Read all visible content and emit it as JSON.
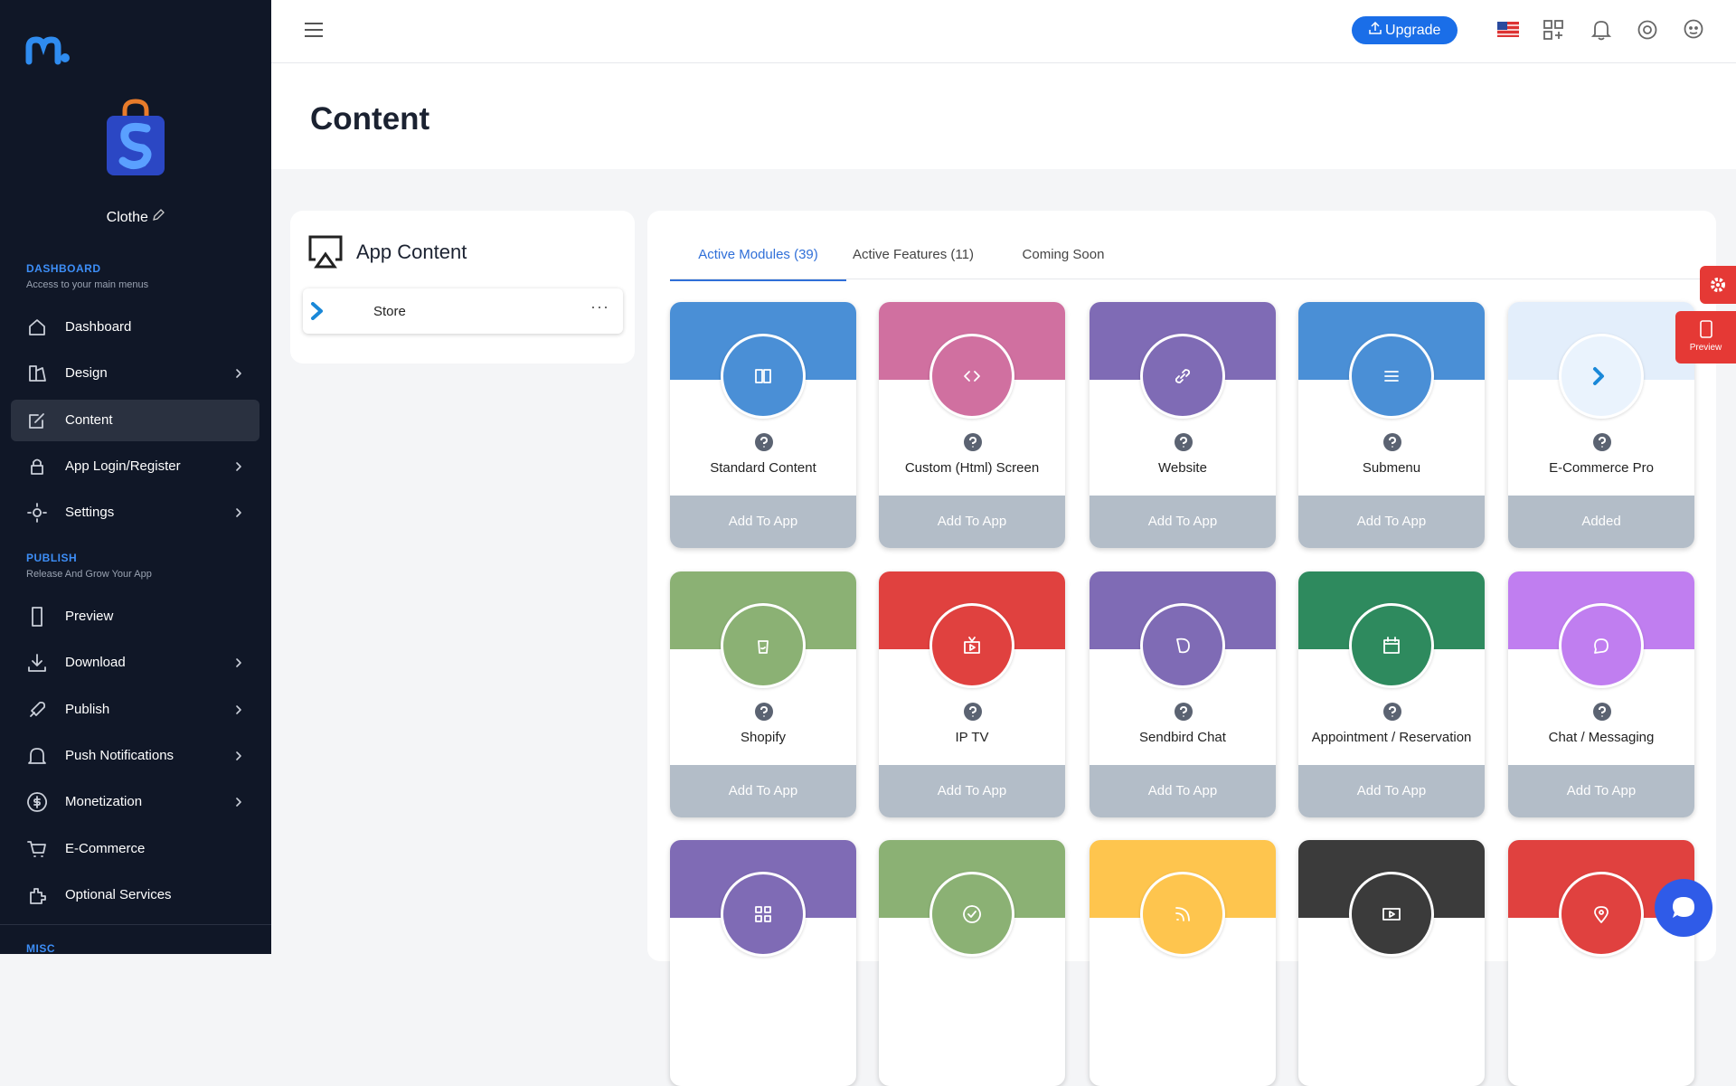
{
  "sidebar": {
    "store_name": "Clothe",
    "sections": [
      {
        "title": "DASHBOARD",
        "subtitle": "Access to your main menus",
        "items": [
          {
            "label": "Dashboard"
          },
          {
            "label": "Design",
            "submenu": true
          },
          {
            "label": "Content",
            "active": true
          },
          {
            "label": "App Login/Register",
            "submenu": true
          },
          {
            "label": "Settings",
            "submenu": true
          }
        ]
      },
      {
        "title": "PUBLISH",
        "subtitle": "Release And Grow Your App",
        "items": [
          {
            "label": "Preview"
          },
          {
            "label": "Download",
            "submenu": true
          },
          {
            "label": "Publish",
            "submenu": true
          },
          {
            "label": "Push Notifications",
            "submenu": true
          },
          {
            "label": "Monetization",
            "submenu": true
          },
          {
            "label": "E-Commerce"
          },
          {
            "label": "Optional Services"
          }
        ]
      },
      {
        "title": "MISC"
      }
    ]
  },
  "topbar": {
    "upgrade": "Upgrade"
  },
  "header": {
    "title": "Content"
  },
  "app_content": {
    "title": "App Content",
    "items": [
      "Store"
    ]
  },
  "tabs": [
    {
      "label": "Active Modules (39)",
      "active": true
    },
    {
      "label": "Active Features (11)"
    },
    {
      "label": "Coming Soon"
    }
  ],
  "modules": [
    {
      "name": "Standard Content",
      "color": "#4a8fd6",
      "button": "Add To App"
    },
    {
      "name": "Custom (Html) Screen",
      "color": "#d070a0",
      "button": "Add To App"
    },
    {
      "name": "Website",
      "color": "#7f6bb5",
      "button": "Add To App"
    },
    {
      "name": "Submenu",
      "color": "#4a8fd6",
      "button": "Add To App"
    },
    {
      "name": "E-Commerce Pro",
      "color": "#e3eefb",
      "button": "Added"
    },
    {
      "name": "Shopify",
      "color": "#8bb174",
      "button": "Add To App"
    },
    {
      "name": "IP TV",
      "color": "#e0413f",
      "button": "Add To App"
    },
    {
      "name": "Sendbird Chat",
      "color": "#7f6bb5",
      "button": "Add To App"
    },
    {
      "name": "Appointment / Reservation",
      "color": "#2e8a5e",
      "button": "Add To App"
    },
    {
      "name": "Chat / Messaging",
      "color": "#c07ef0",
      "button": "Add To App"
    },
    {
      "color": "#7f6bb5"
    },
    {
      "color": "#8bb174"
    },
    {
      "color": "#fec54e"
    },
    {
      "color": "#3b3b3b"
    },
    {
      "color": "#e0413f"
    }
  ],
  "preview_button": "Preview"
}
